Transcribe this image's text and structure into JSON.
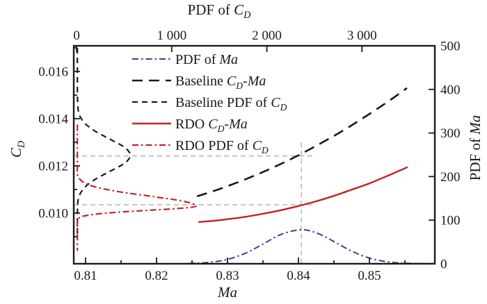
{
  "figure": {
    "background": "#ffffff",
    "colors": {
      "black": "#1a1a1a",
      "red": "#c42222",
      "blue": "#3c3c96",
      "gray_dash": "#9a9a9a",
      "text": "#1a1a1a"
    }
  },
  "chart_data": {
    "type": "line",
    "title_parts": [
      {
        "t": "PDF of "
      },
      {
        "t": "C",
        "s": "i"
      },
      {
        "t": "D",
        "s": "sub"
      }
    ],
    "axes": {
      "bottom": {
        "label_parts": [
          {
            "t": "Ma",
            "s": "i"
          }
        ],
        "range": [
          0.80833,
          0.85922
        ],
        "ticks": [
          {
            "v": 0.81,
            "l": "0.81"
          },
          {
            "v": 0.82,
            "l": "0.82"
          },
          {
            "v": 0.83,
            "l": "0.83"
          },
          {
            "v": 0.84,
            "l": "0.84"
          },
          {
            "v": 0.85,
            "l": "0.85"
          }
        ],
        "minor": [
          0.815,
          0.825,
          0.835,
          0.845,
          0.855
        ]
      },
      "top": {
        "label_parts": [
          {
            "t": "PDF of "
          },
          {
            "t": "C",
            "s": "i"
          },
          {
            "t": "D",
            "s": "sub"
          }
        ],
        "range": [
          -30,
          3766
        ],
        "ticks": [
          {
            "v": 0,
            "l": "0"
          },
          {
            "v": 1000,
            "l": "1 000"
          },
          {
            "v": 2000,
            "l": "2 000"
          },
          {
            "v": 3000,
            "l": "3 000"
          }
        ],
        "minor": []
      },
      "left": {
        "label_parts": [
          {
            "t": "C",
            "s": "i"
          },
          {
            "t": "D",
            "s": "sub"
          }
        ],
        "range": [
          0.007853,
          0.017088
        ],
        "ticks": [
          {
            "v": 0.01,
            "l": "0.010"
          },
          {
            "v": 0.012,
            "l": "0.012"
          },
          {
            "v": 0.014,
            "l": "0.014"
          },
          {
            "v": 0.016,
            "l": "0.016"
          }
        ],
        "minor": [
          0.009,
          0.011,
          0.013,
          0.015,
          0.017
        ]
      },
      "right": {
        "label_parts": [
          {
            "t": "PDF of "
          },
          {
            "t": "Ma",
            "s": "i"
          }
        ],
        "range": [
          0,
          500
        ],
        "ticks": [
          {
            "v": 0,
            "l": "0"
          },
          {
            "v": 100,
            "l": "100"
          },
          {
            "v": 200,
            "l": "200"
          },
          {
            "v": 300,
            "l": "300"
          },
          {
            "v": 400,
            "l": "400"
          },
          {
            "v": 500,
            "l": "500"
          }
        ],
        "minor": []
      }
    },
    "series": [
      {
        "id": "pdf-ma",
        "color": "blue",
        "dash": "dashdot",
        "width": 2.0,
        "x_axis": "bottom",
        "y_axis": "right",
        "points": [
          [
            0.8245,
            0.6
          ],
          [
            0.825,
            0.9
          ],
          [
            0.8275,
            3.3
          ],
          [
            0.83,
            10
          ],
          [
            0.8325,
            24
          ],
          [
            0.835,
            45
          ],
          [
            0.8375,
            67
          ],
          [
            0.8403,
            78
          ],
          [
            0.8425,
            71
          ],
          [
            0.845,
            51
          ],
          [
            0.8475,
            29
          ],
          [
            0.85,
            13
          ],
          [
            0.8525,
            4.5
          ],
          [
            0.855,
            1.2
          ],
          [
            0.8575,
            0.4
          ],
          [
            0.859,
            0.1
          ]
        ]
      },
      {
        "id": "baseline-cd-ma",
        "color": "black",
        "dash": "longdash",
        "width": 2.6,
        "x_axis": "bottom",
        "y_axis": "left",
        "points": [
          [
            0.8257,
            0.01071
          ],
          [
            0.828,
            0.01093
          ],
          [
            0.83,
            0.01114
          ],
          [
            0.8325,
            0.01143
          ],
          [
            0.835,
            0.01174
          ],
          [
            0.8375,
            0.01208
          ],
          [
            0.84,
            0.01245
          ],
          [
            0.8425,
            0.01285
          ],
          [
            0.845,
            0.01327
          ],
          [
            0.8475,
            0.01372
          ],
          [
            0.85,
            0.0142
          ],
          [
            0.8525,
            0.0147
          ],
          [
            0.8553,
            0.0153
          ]
        ]
      },
      {
        "id": "baseline-pdf-cd",
        "color": "black",
        "dash": "shortdash",
        "width": 2.2,
        "x_axis": "top",
        "y_axis": "left",
        "points": [
          [
            8,
            0.017
          ],
          [
            8,
            0.0158
          ],
          [
            9,
            0.015
          ],
          [
            12,
            0.0146
          ],
          [
            20,
            0.0143
          ],
          [
            35,
            0.0141
          ],
          [
            88,
            0.0138
          ],
          [
            183,
            0.0135
          ],
          [
            318,
            0.0132
          ],
          [
            460,
            0.0129
          ],
          [
            530,
            0.0127
          ],
          [
            565,
            0.01245
          ],
          [
            530,
            0.0122
          ],
          [
            460,
            0.012
          ],
          [
            318,
            0.0117
          ],
          [
            183,
            0.0114
          ],
          [
            88,
            0.0111
          ],
          [
            35,
            0.0108
          ],
          [
            14,
            0.0105
          ],
          [
            9,
            0.0101
          ],
          [
            8,
            0.0096
          ],
          [
            8,
            0.009
          ]
        ]
      },
      {
        "id": "rdo-cd-ma",
        "color": "red",
        "dash": "solid",
        "width": 2.4,
        "x_axis": "bottom",
        "y_axis": "left",
        "points": [
          [
            0.8259,
            0.00962
          ],
          [
            0.828,
            0.00967
          ],
          [
            0.83,
            0.00974
          ],
          [
            0.8325,
            0.00984
          ],
          [
            0.835,
            0.00997
          ],
          [
            0.8375,
            0.01012
          ],
          [
            0.84,
            0.0103
          ],
          [
            0.8425,
            0.0105
          ],
          [
            0.845,
            0.01073
          ],
          [
            0.8475,
            0.01099
          ],
          [
            0.85,
            0.01126
          ],
          [
            0.8525,
            0.01157
          ],
          [
            0.8554,
            0.01195
          ]
        ]
      },
      {
        "id": "rdo-pdf-cd",
        "color": "red",
        "dash": "dashdot",
        "width": 2.2,
        "x_axis": "top",
        "y_axis": "left",
        "points": [
          [
            8,
            0.01375
          ],
          [
            8,
            0.013
          ],
          [
            8,
            0.0124
          ],
          [
            9,
            0.012
          ],
          [
            11,
            0.0116
          ],
          [
            74,
            0.0113
          ],
          [
            205,
            0.0111
          ],
          [
            454,
            0.0109
          ],
          [
            801,
            0.0107
          ],
          [
            1125,
            0.0105
          ],
          [
            1260,
            0.0103
          ],
          [
            1080,
            0.0102
          ],
          [
            680,
            0.0101
          ],
          [
            314,
            0.01
          ],
          [
            107,
            0.0099
          ],
          [
            27,
            0.0098
          ],
          [
            9,
            0.0097
          ],
          [
            8,
            0.0094
          ],
          [
            8,
            0.0089
          ],
          [
            8,
            0.0084
          ]
        ]
      }
    ],
    "legend": {
      "items": [
        {
          "series": "pdf-ma",
          "parts": [
            {
              "t": "PDF of "
            },
            {
              "t": "Ma",
              "s": "i"
            }
          ]
        },
        {
          "series": "baseline-cd-ma",
          "parts": [
            {
              "t": "Baseline "
            },
            {
              "t": "C",
              "s": "i"
            },
            {
              "t": "D",
              "s": "sub"
            },
            {
              "t": "-"
            },
            {
              "t": "Ma",
              "s": "i"
            }
          ]
        },
        {
          "series": "baseline-pdf-cd",
          "parts": [
            {
              "t": "Baseline PDF of "
            },
            {
              "t": "C",
              "s": "i"
            },
            {
              "t": "D",
              "s": "sub"
            }
          ]
        },
        {
          "series": "rdo-cd-ma",
          "parts": [
            {
              "t": "RDO "
            },
            {
              "t": "C",
              "s": "i"
            },
            {
              "t": "D",
              "s": "sub"
            },
            {
              "t": "-"
            },
            {
              "t": "Ma",
              "s": "i"
            }
          ]
        },
        {
          "series": "rdo-pdf-cd",
          "parts": [
            {
              "t": "RDO PDF of "
            },
            {
              "t": "C",
              "s": "i"
            },
            {
              "t": "D",
              "s": "sub"
            }
          ]
        }
      ]
    },
    "annotations": {
      "crosshair_x_ma": 0.8404,
      "crosshair_y_top_cd": 0.013,
      "hlines": [
        {
          "cd": 0.01242,
          "ma_end": 0.8421
        },
        {
          "cd": 0.01035,
          "ma_end": 0.8424
        }
      ]
    }
  }
}
